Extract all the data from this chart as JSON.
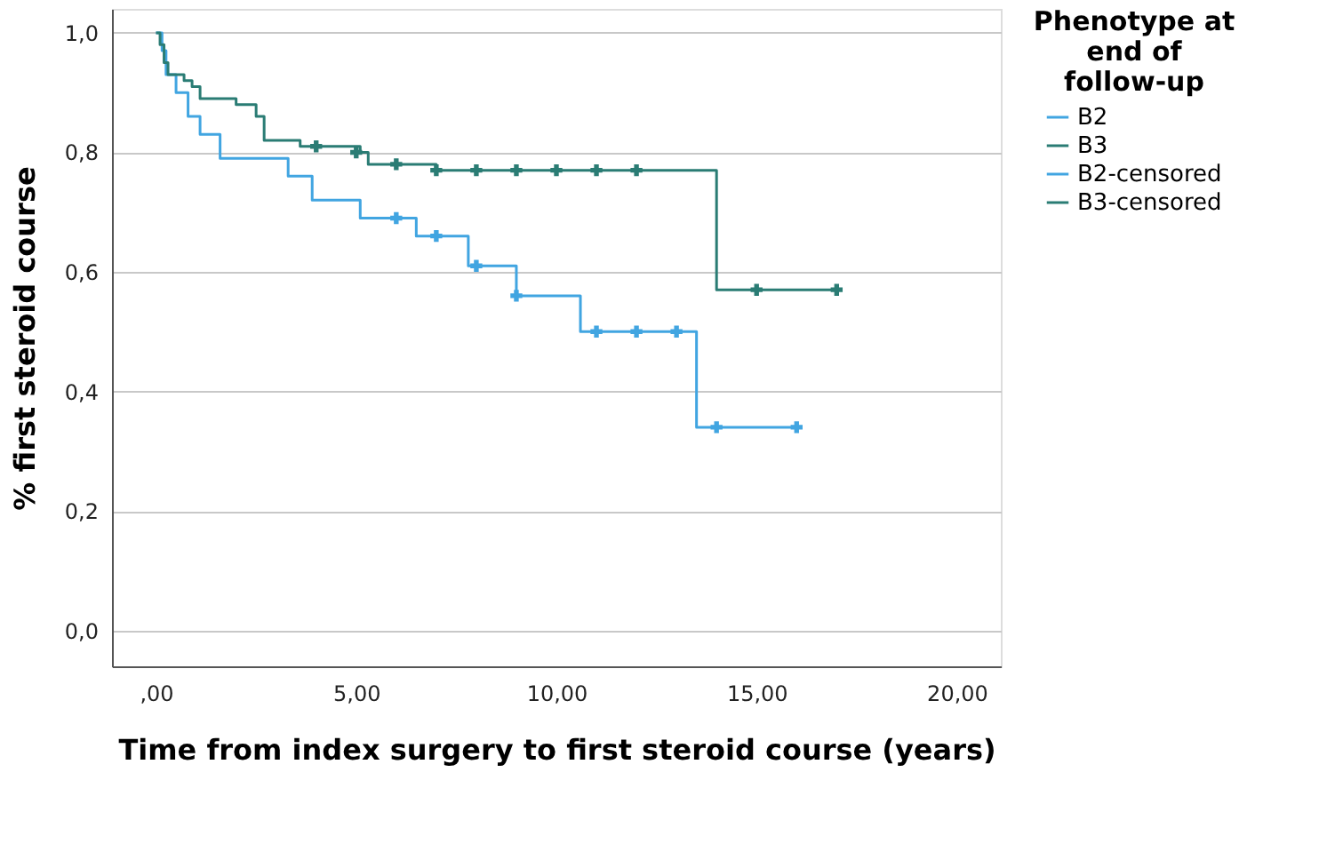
{
  "chart_data": {
    "type": "step",
    "xlabel": "Time from index surgery to first steroid course (years)",
    "ylabel": "% first steroid course",
    "legend_title": "Phenotype at end of follow-up",
    "xlim": [
      -1.1,
      21.1
    ],
    "ylim": [
      -0.06,
      1.04
    ],
    "xticks": [
      {
        "value": 0,
        "label": ",00"
      },
      {
        "value": 5,
        "label": "5,00"
      },
      {
        "value": 10,
        "label": "10,00"
      },
      {
        "value": 15,
        "label": "15,00"
      },
      {
        "value": 20,
        "label": "20,00"
      }
    ],
    "yticks": [
      {
        "value": 0,
        "label": "0,0"
      },
      {
        "value": 0.2,
        "label": "0,2"
      },
      {
        "value": 0.4,
        "label": "0,4"
      },
      {
        "value": 0.6,
        "label": "0,6"
      },
      {
        "value": 0.8,
        "label": "0,8"
      },
      {
        "value": 1.0,
        "label": "1,0"
      }
    ],
    "grid": "y",
    "legend": "top right",
    "series": [
      {
        "name": "B2",
        "color": "#41a5e1",
        "x": [
          0,
          0.15,
          0.25,
          0.5,
          0.8,
          1.1,
          1.6,
          3.3,
          3.9,
          5.1,
          6.5,
          7.8,
          9.0,
          10.6,
          13.5,
          16
        ],
        "values": [
          1.0,
          0.97,
          0.93,
          0.9,
          0.86,
          0.83,
          0.79,
          0.76,
          0.72,
          0.69,
          0.66,
          0.61,
          0.56,
          0.5,
          0.34,
          0.34
        ]
      },
      {
        "name": "B3",
        "color": "#2a7c74",
        "x": [
          0,
          0.1,
          0.2,
          0.3,
          0.7,
          0.9,
          1.1,
          2.0,
          2.5,
          2.7,
          3.6,
          5.1,
          5.3,
          7.0,
          14.0,
          17
        ],
        "values": [
          1.0,
          0.98,
          0.95,
          0.93,
          0.92,
          0.91,
          0.89,
          0.88,
          0.86,
          0.82,
          0.81,
          0.8,
          0.78,
          0.77,
          0.57,
          0.57
        ]
      },
      {
        "name": "B2-censored",
        "type": "scatter",
        "marker": "cross",
        "color": "#41a5e1",
        "x": [
          6,
          7,
          8,
          9,
          11,
          12,
          13,
          14,
          16
        ],
        "values": [
          0.69,
          0.66,
          0.61,
          0.56,
          0.5,
          0.5,
          0.5,
          0.34,
          0.34
        ]
      },
      {
        "name": "B3-censored",
        "type": "scatter",
        "marker": "cross",
        "color": "#2a7c74",
        "x": [
          4,
          5,
          6,
          7,
          8,
          9,
          10,
          11,
          12,
          15,
          17
        ],
        "values": [
          0.81,
          0.8,
          0.78,
          0.77,
          0.77,
          0.77,
          0.77,
          0.77,
          0.77,
          0.57,
          0.57
        ]
      }
    ]
  }
}
